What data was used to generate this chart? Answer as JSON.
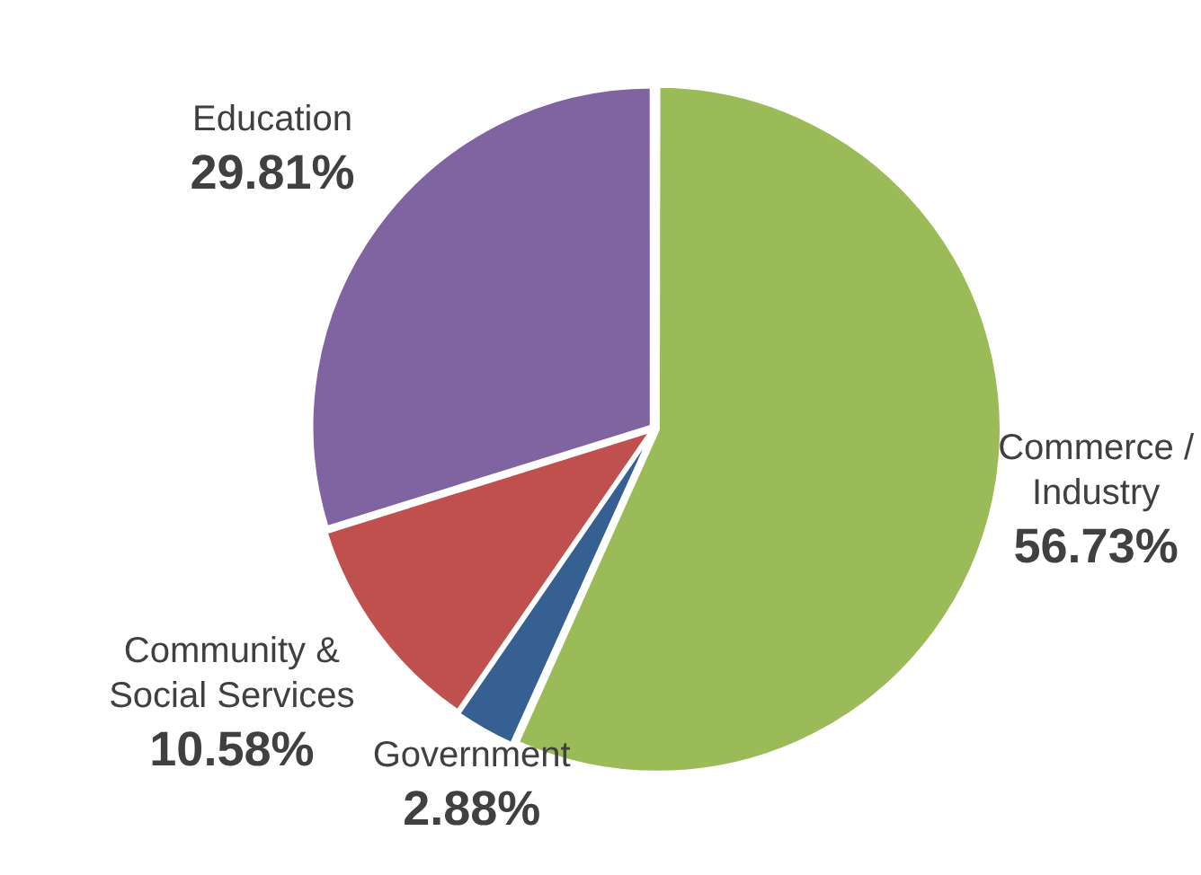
{
  "chart_data": {
    "type": "pie",
    "categories": [
      "Commerce / Industry",
      "Government",
      "Community & Social Services",
      "Education"
    ],
    "values": [
      56.73,
      2.88,
      10.58,
      29.81
    ],
    "colors": [
      "#9bbb59",
      "#376092",
      "#c0504d",
      "#8064a2"
    ],
    "value_labels": [
      "56.73%",
      "2.88%",
      "10.58%",
      "29.81%"
    ],
    "legend": false
  }
}
